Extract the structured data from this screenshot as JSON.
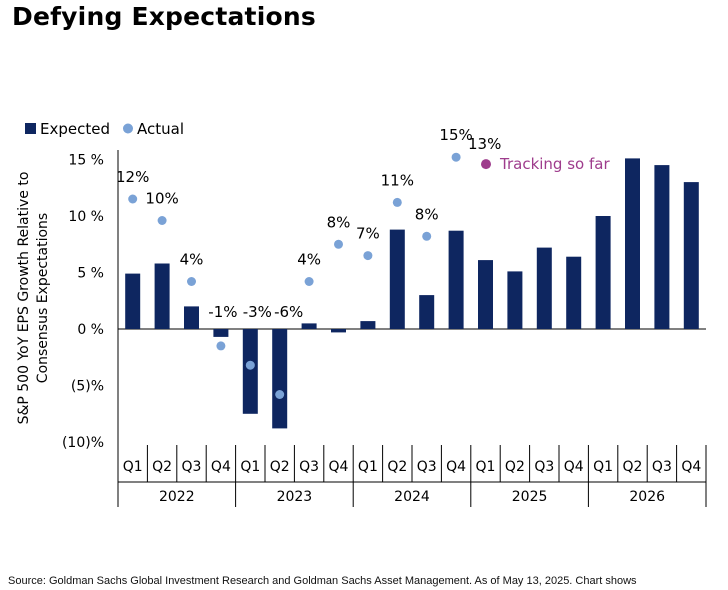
{
  "title": "Defying Expectations",
  "source_note": "Source: Goldman Sachs Global Investment Research and Goldman Sachs Asset Management. As of May 13, 2025. Chart shows",
  "colors": {
    "expected": "#0e2660",
    "actual": "#7aa2d6",
    "tracking": "#9e3c8c",
    "axis": "#000000"
  },
  "chart_data": {
    "type": "bar",
    "ylabel_lines": [
      "S&P 500 YoY EPS Growth Relative to",
      "Consensus Expectations"
    ],
    "ylim": [
      -10,
      15
    ],
    "y_ticks": [
      15,
      10,
      5,
      0,
      -5,
      -10
    ],
    "y_tick_labels": [
      "15 %",
      "10 %",
      "5 %",
      "0 %",
      "(5)%",
      "(10)%"
    ],
    "legend": {
      "expected": "Expected",
      "actual": "Actual",
      "placement": "top-left"
    },
    "quarters": [
      "Q1",
      "Q2",
      "Q3",
      "Q4",
      "Q1",
      "Q2",
      "Q3",
      "Q4",
      "Q1",
      "Q2",
      "Q3",
      "Q4",
      "Q1",
      "Q2",
      "Q3",
      "Q4",
      "Q1",
      "Q2",
      "Q3",
      "Q4"
    ],
    "years": [
      "2022",
      "2023",
      "2024",
      "2025",
      "2026"
    ],
    "series": [
      {
        "name": "Expected",
        "values": [
          4.9,
          5.8,
          2.0,
          -0.7,
          -7.5,
          -8.8,
          0.5,
          -0.3,
          0.7,
          8.8,
          3.0,
          8.7,
          6.1,
          5.1,
          7.2,
          6.4,
          10.0,
          15.1,
          14.5,
          13.0
        ]
      },
      {
        "name": "Actual",
        "values": [
          11.5,
          9.6,
          4.2,
          -1.5,
          -3.2,
          -5.8,
          4.2,
          7.5,
          6.5,
          11.2,
          8.2,
          15.2,
          null,
          null,
          null,
          null,
          null,
          null,
          null,
          null
        ],
        "labels": [
          "12%",
          "10%",
          "4%",
          "-1%",
          "-3%",
          "-6%",
          "4%",
          "8%",
          "7%",
          "11%",
          "8%",
          "15%",
          null,
          null,
          null,
          null,
          null,
          null,
          null,
          null
        ]
      }
    ],
    "annotation": {
      "marker_value": 13.0,
      "label": "13%",
      "text": "Tracking so far"
    }
  }
}
